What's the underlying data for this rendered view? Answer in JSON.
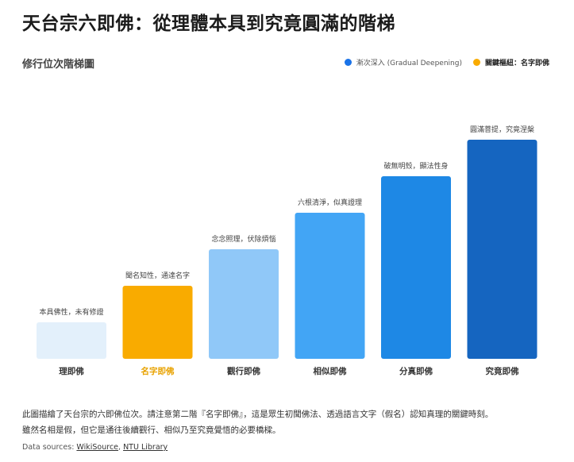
{
  "page": {
    "title": "天台宗六即佛：從理體本具到究竟圓滿的階梯",
    "description_line1": "此圖描繪了天台宗的六即佛位次。請注意第二階『名字即佛』，這是眾生初聞佛法、透過語言文字（假名）認知真理的關鍵時刻。",
    "description_line2": "雖然名相是假，但它是通往後續觀行、相似乃至究竟覺悟的必要橋樑。",
    "sources_prefix": "Data sources: ",
    "source_1": "WikiSource",
    "source_sep": ", ",
    "source_2": "NTU Library"
  },
  "legend": {
    "item_1": {
      "label": "漸次深入 (Gradual Deepening)",
      "color": "#1a73e8"
    },
    "item_2": {
      "label": "關鍵樞紐：名字即佛",
      "color": "#f9ab00"
    }
  },
  "chart_data": {
    "type": "bar",
    "title": "修行位次階梯圖",
    "categories": [
      "理即佛",
      "名字即佛",
      "觀行即佛",
      "相似即佛",
      "分真即佛",
      "究竟即佛"
    ],
    "values": [
      1,
      2,
      3,
      4,
      5,
      6
    ],
    "annotations": [
      "本具佛性，未有修證",
      "聞名知性，通達名字",
      "念念照理，伏除煩惱",
      "六根清淨，似真證理",
      "破無明殼，顯法性身",
      "圓滿菩提，究竟涅槃"
    ],
    "colors": [
      "#e3f0fb",
      "#f9ab00",
      "#90c8f8",
      "#42a5f5",
      "#1e88e5",
      "#1565c0"
    ],
    "highlight_index": 1,
    "highlight_color": "#e8a200",
    "ylim": [
      0,
      6
    ],
    "grid": false,
    "legend_position": "top-right"
  }
}
